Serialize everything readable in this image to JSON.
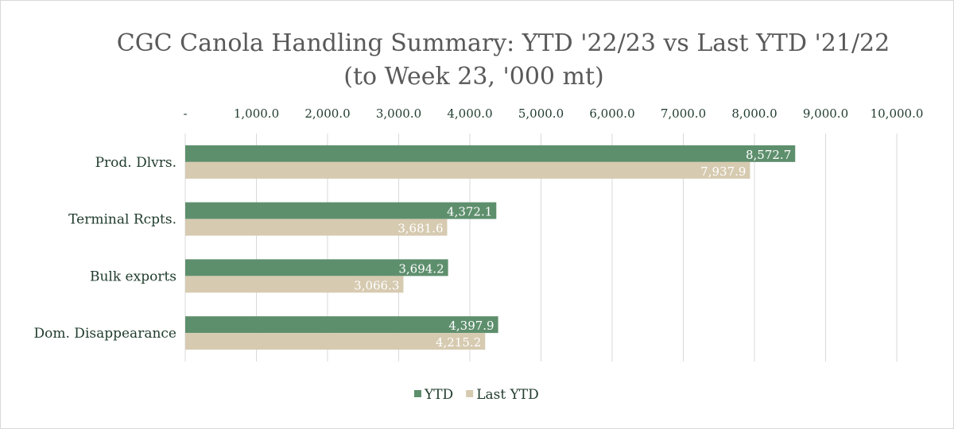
{
  "chart_data": {
    "type": "bar",
    "orientation": "horizontal",
    "title": "CGC Canola Handling Summary: YTD '22/23 vs Last YTD '21/22",
    "subtitle": "(to Week 23, '000 mt)",
    "categories": [
      "Prod. Dlvrs.",
      "Terminal Rcpts.",
      "Bulk exports",
      "Dom. Disappearance"
    ],
    "series": [
      {
        "name": "YTD",
        "color": "#5e8f6d",
        "values": [
          8572.7,
          4372.1,
          3694.2,
          4397.9
        ],
        "labels": [
          "8,572.7",
          "4,372.1",
          "3,694.2",
          "4,397.9"
        ]
      },
      {
        "name": "Last YTD",
        "color": "#d6cab0",
        "values": [
          7937.9,
          3681.6,
          3066.3,
          4215.2
        ],
        "labels": [
          "7,937.9",
          "3,681.6",
          "3,066.3",
          "4,215.2"
        ]
      }
    ],
    "xlim": [
      0,
      10000
    ],
    "xticks": [
      0,
      1000,
      2000,
      3000,
      4000,
      5000,
      6000,
      7000,
      8000,
      9000,
      10000
    ],
    "xtick_labels": [
      "-",
      "1,000.0",
      "2,000.0",
      "3,000.0",
      "4,000.0",
      "5,000.0",
      "6,000.0",
      "7,000.0",
      "8,000.0",
      "9,000.0",
      "10,000.0"
    ],
    "xaxis_position": "top",
    "grid": true,
    "legend": "bottom"
  }
}
